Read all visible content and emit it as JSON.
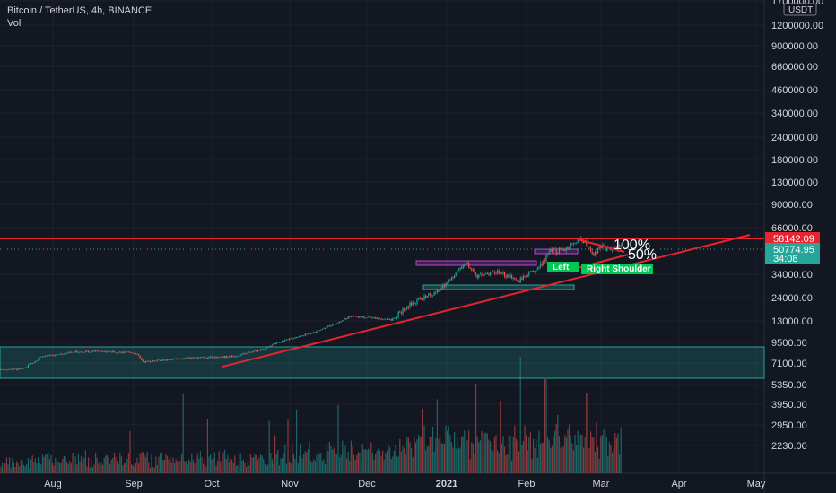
{
  "header": {
    "symbol_line": "Bitcoin / TetherUS, 4h, BINANCE",
    "indicator": "Vol"
  },
  "currency_badge": "USDT",
  "colors": {
    "background": "#131722",
    "grid": "#1e222d",
    "up": "#26a69a",
    "down": "#ef5350",
    "drawing_red": "#e8242f",
    "box_teal": "#26a69a",
    "box_magenta": "#9c27b0",
    "label_green": "#00c853"
  },
  "chart_data": {
    "type": "candlestick",
    "y_scale": "log",
    "y_ticks": [
      "1700000.00",
      "1200000.00",
      "900000.00",
      "660000.00",
      "460000.00",
      "340000.00",
      "240000.00",
      "180000.00",
      "130000.00",
      "90000.00",
      "66000.00",
      "34000.00",
      "24000.00",
      "13000.00",
      "9500.00",
      "7100.00",
      "5350.00",
      "3950.00",
      "2950.00",
      "2230.00"
    ],
    "x_ticks": [
      "Aug",
      "Sep",
      "Oct",
      "Nov",
      "Dec",
      "2021",
      "Feb",
      "Mar",
      "Apr",
      "May"
    ],
    "price_path": [
      [
        "2020-07-20",
        9200
      ],
      [
        "2020-07-28",
        11000
      ],
      [
        "2020-08-10",
        11700
      ],
      [
        "2020-08-20",
        11800
      ],
      [
        "2020-09-02",
        11500
      ],
      [
        "2020-09-05",
        10200
      ],
      [
        "2020-09-20",
        10700
      ],
      [
        "2020-10-10",
        11000
      ],
      [
        "2020-10-20",
        12000
      ],
      [
        "2020-10-28",
        13500
      ],
      [
        "2020-11-10",
        15300
      ],
      [
        "2020-11-24",
        19000
      ],
      [
        "2020-12-01",
        18800
      ],
      [
        "2020-12-10",
        18200
      ],
      [
        "2020-12-17",
        22500
      ],
      [
        "2020-12-28",
        27000
      ],
      [
        "2021-01-08",
        40000
      ],
      [
        "2021-01-12",
        33000
      ],
      [
        "2021-01-20",
        35500
      ],
      [
        "2021-01-28",
        31000
      ],
      [
        "2021-02-05",
        37500
      ],
      [
        "2021-02-09",
        46000
      ],
      [
        "2021-02-16",
        49000
      ],
      [
        "2021-02-21",
        57500
      ],
      [
        "2021-02-26",
        45000
      ],
      [
        "2021-03-01",
        49500
      ],
      [
        "2021-03-05",
        47500
      ],
      [
        "2021-03-09",
        50775
      ]
    ],
    "last_price": "50774.95",
    "countdown": "34:08",
    "resistance_price": "58142.09",
    "volume_panel": true
  },
  "annotations": {
    "pct_100": "100%",
    "pct_50": "50%",
    "left_shoulder": "Left",
    "right_shoulder": "Right Shoulder"
  }
}
